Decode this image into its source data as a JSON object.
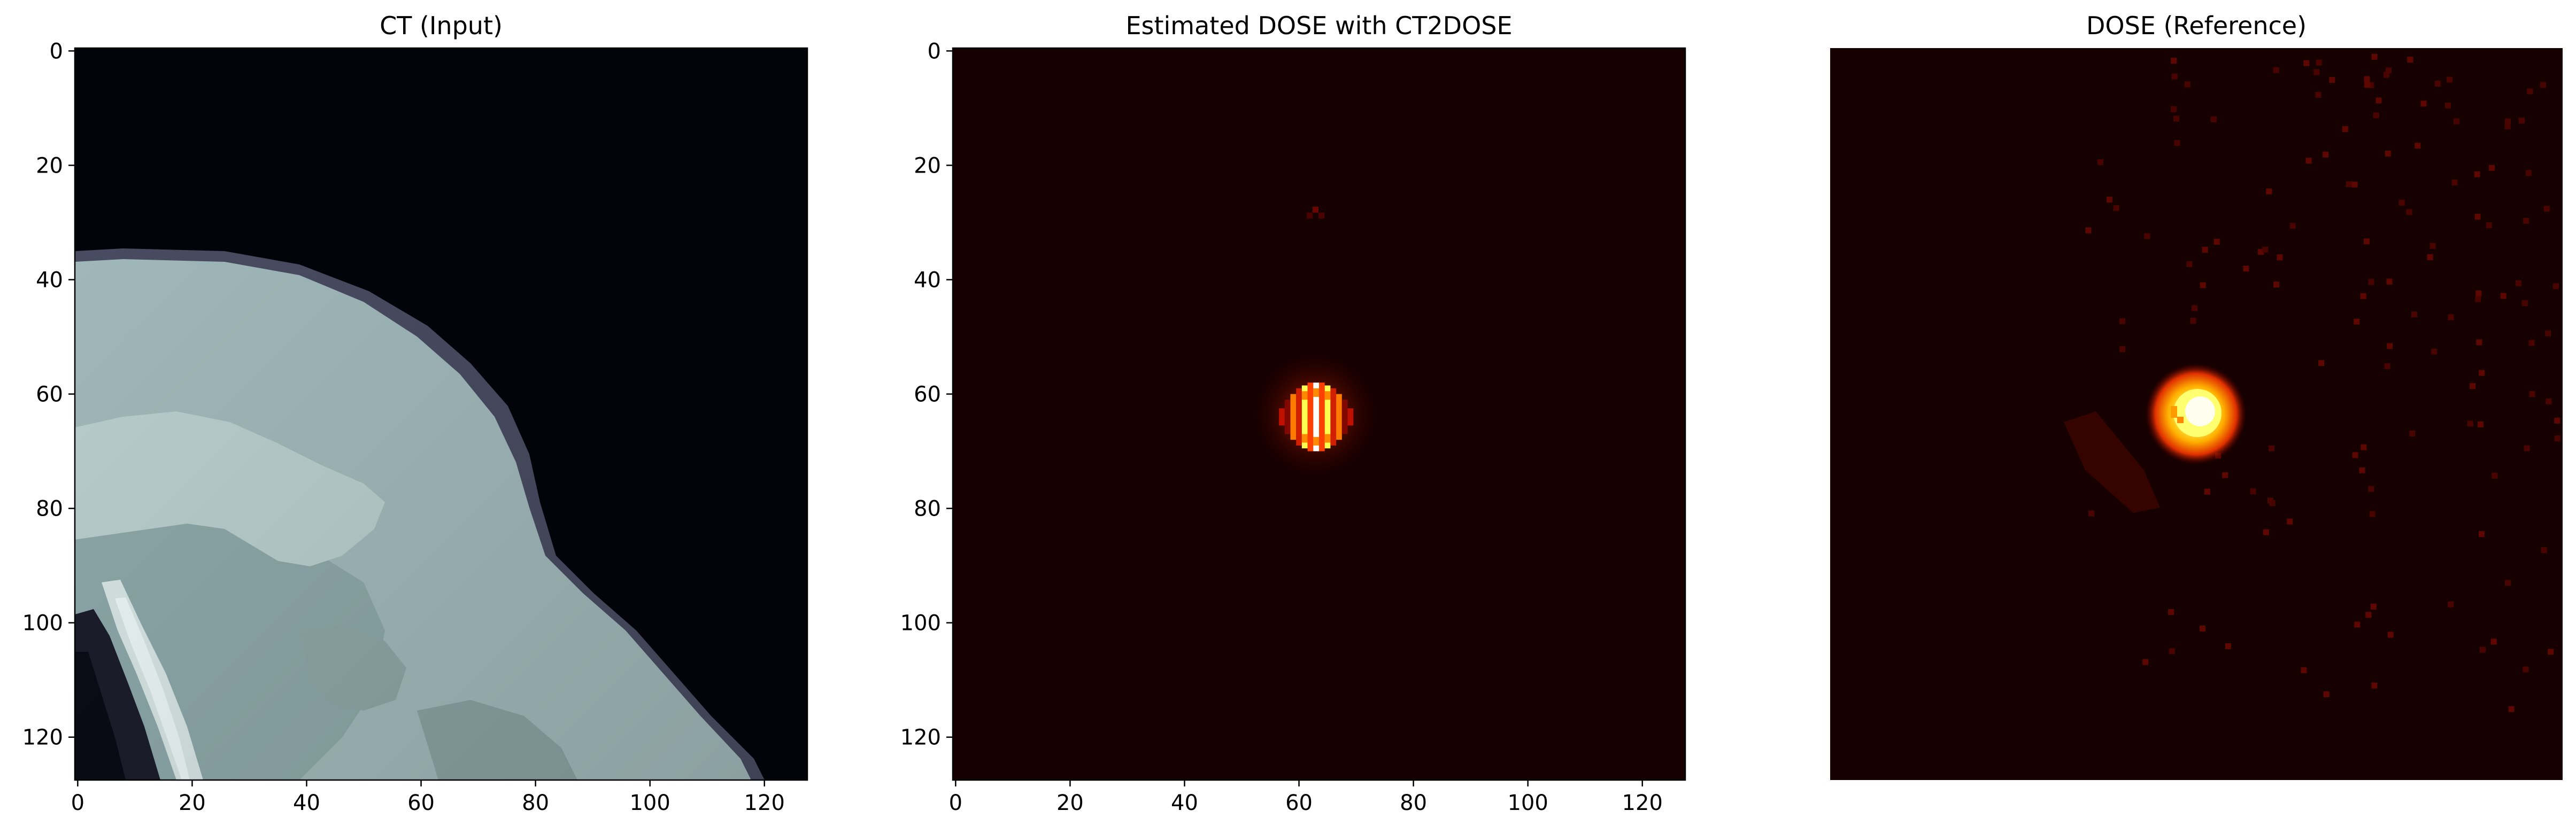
{
  "figure": {
    "panels": [
      {
        "title": "CT (Input)",
        "colormap": "bone",
        "show_axes": true,
        "x_ticks": [
          "0",
          "20",
          "40",
          "60",
          "80",
          "100",
          "120"
        ],
        "y_ticks": [
          "0",
          "20",
          "40",
          "60",
          "80",
          "100",
          "120"
        ],
        "extent": [
          0,
          128
        ]
      },
      {
        "title": "Estimated DOSE with CT2DOSE",
        "colormap": "hot",
        "show_axes": true,
        "x_ticks": [
          "0",
          "20",
          "40",
          "60",
          "80",
          "100",
          "120"
        ],
        "y_ticks": [
          "0",
          "20",
          "40",
          "60",
          "80",
          "100",
          "120"
        ],
        "extent": [
          0,
          128
        ],
        "hotspot_center": [
          63,
          64
        ]
      },
      {
        "title": "DOSE (Reference)",
        "colormap": "hot",
        "show_axes": false,
        "hotspot_center": [
          64,
          64
        ]
      }
    ],
    "colors": {
      "ct_background": "#02040a",
      "ct_tissue": "#a3bbbd",
      "ct_bright_tissue": "#c4d8d8",
      "ct_bone": "#e6f2f2",
      "ct_edge": "#5a5d72",
      "dose_background": "#160000",
      "dose_red": "#c01000",
      "dose_orange": "#ff6a00",
      "dose_yellow": "#ffff40",
      "dose_white": "#ffffff"
    }
  }
}
